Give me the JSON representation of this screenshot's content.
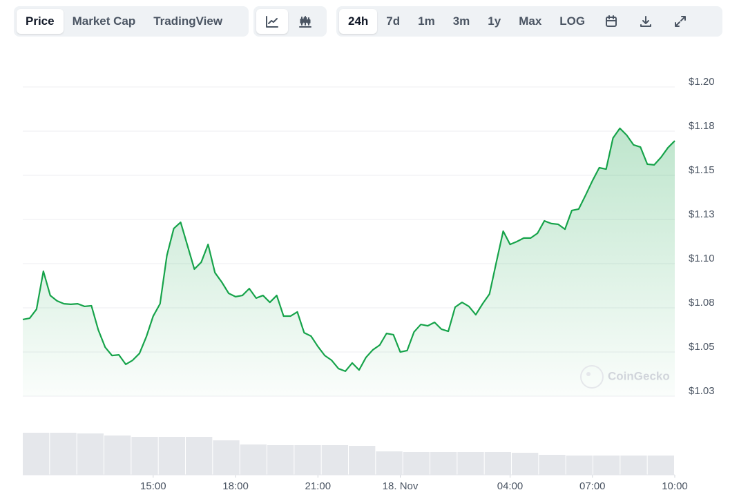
{
  "toolbar": {
    "tabs": [
      "Price",
      "Market Cap",
      "TradingView"
    ],
    "ranges": [
      "24h",
      "7d",
      "1m",
      "3m",
      "1y",
      "Max",
      "LOG"
    ]
  },
  "chart_data": {
    "type": "area",
    "color": "#16a34a",
    "grid": true,
    "watermark": "CoinGecko",
    "x": [
      10.25,
      10.5,
      10.75,
      11,
      11.25,
      11.5,
      11.75,
      12,
      12.25,
      12.5,
      12.75,
      13,
      13.25,
      13.5,
      13.75,
      14,
      14.25,
      14.5,
      14.75,
      15,
      15.25,
      15.5,
      15.75,
      16,
      16.25,
      16.5,
      16.75,
      17,
      17.25,
      17.5,
      17.75,
      18,
      18.25,
      18.5,
      18.75,
      19,
      19.25,
      19.5,
      19.75,
      20,
      20.25,
      20.5,
      20.75,
      21,
      21.25,
      21.5,
      21.75,
      22,
      22.25,
      22.5,
      22.75,
      23,
      23.25,
      23.5,
      23.75,
      24,
      24.25,
      24.5,
      24.75,
      25,
      25.25,
      25.5,
      25.75,
      26,
      26.25,
      26.5,
      26.75,
      27,
      27.25,
      27.5,
      27.75,
      28,
      28.25,
      28.5,
      28.75,
      29,
      29.25,
      29.5,
      29.75,
      30,
      30.25,
      30.5,
      30.75,
      31,
      31.25,
      31.5,
      31.75,
      32,
      32.25,
      32.5,
      32.75,
      33,
      33.25,
      33.5,
      33.75,
      34
    ],
    "values": [
      1.0684,
      1.0691,
      1.0742,
      1.0957,
      1.082,
      1.0789,
      1.0773,
      1.077,
      1.0773,
      1.0758,
      1.0762,
      1.0625,
      1.0527,
      1.048,
      1.0484,
      1.043,
      1.0453,
      1.0492,
      1.0586,
      1.0703,
      1.0773,
      1.1047,
      1.1199,
      1.1234,
      1.1102,
      1.0969,
      1.1008,
      1.1109,
      1.0949,
      1.0895,
      1.0832,
      1.0813,
      1.082,
      1.0859,
      1.0805,
      1.082,
      1.0781,
      1.082,
      1.0703,
      1.0703,
      1.0727,
      1.0609,
      1.059,
      1.0531,
      1.048,
      1.0453,
      1.0406,
      1.0391,
      1.0438,
      1.0398,
      1.0469,
      1.0512,
      1.0539,
      1.0605,
      1.0598,
      1.05,
      1.0508,
      1.0613,
      1.0656,
      1.0648,
      1.0668,
      1.0629,
      1.0617,
      1.0754,
      1.0781,
      1.0758,
      1.0711,
      1.0773,
      1.0828,
      1.1008,
      1.1184,
      1.1109,
      1.1125,
      1.1145,
      1.1145,
      1.1172,
      1.1242,
      1.1227,
      1.1223,
      1.1195,
      1.1301,
      1.1309,
      1.1387,
      1.1469,
      1.1543,
      1.1535,
      1.1711,
      1.1766,
      1.1727,
      1.1672,
      1.166,
      1.1563,
      1.1559,
      1.1602,
      1.1656,
      1.1695
    ],
    "xlim": [
      10.25,
      34
    ],
    "xticks": [
      {
        "value": 15,
        "label": "15:00"
      },
      {
        "value": 18,
        "label": "18:00"
      },
      {
        "value": 21,
        "label": "21:00"
      },
      {
        "value": 24,
        "label": "18. Nov"
      },
      {
        "value": 28,
        "label": "04:00"
      },
      {
        "value": 31,
        "label": "07:00"
      },
      {
        "value": 34,
        "label": "10:00"
      }
    ],
    "ylim": [
      1.025,
      1.2
    ],
    "yticks": [
      {
        "value": 1.2,
        "label": "$1.20"
      },
      {
        "value": 1.175,
        "label": "$1.18"
      },
      {
        "value": 1.15,
        "label": "$1.15"
      },
      {
        "value": 1.125,
        "label": "$1.13"
      },
      {
        "value": 1.1,
        "label": "$1.10"
      },
      {
        "value": 1.075,
        "label": "$1.08"
      },
      {
        "value": 1.05,
        "label": "$1.05"
      },
      {
        "value": 1.025,
        "label": "$1.03"
      }
    ],
    "volume": {
      "color": "#e5e7eb",
      "ylim": [
        0,
        65
      ],
      "values": [
        61,
        61,
        60,
        57,
        55,
        55,
        55,
        50,
        44,
        43,
        43,
        43,
        42,
        34,
        33,
        33,
        33,
        33,
        32,
        29,
        28,
        28,
        28,
        28
      ]
    }
  }
}
